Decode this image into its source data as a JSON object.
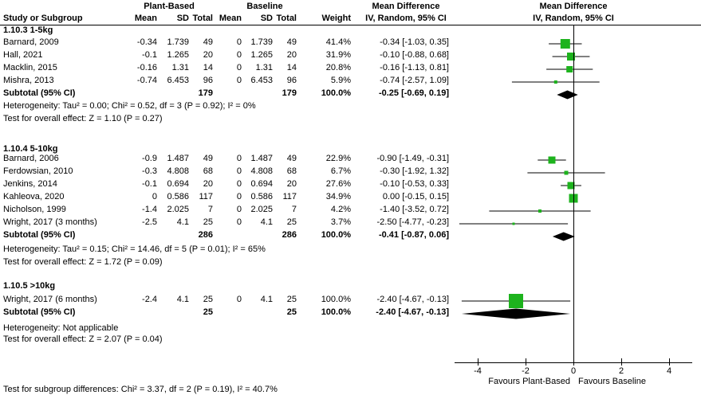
{
  "header": {
    "plant_based": "Plant-Based",
    "baseline": "Baseline",
    "study_or_subgroup": "Study or Subgroup",
    "mean": "Mean",
    "sd": "SD",
    "total": "Total",
    "weight": "Weight",
    "mean_difference": "Mean Difference",
    "iv_random": "IV, Random, 95% CI"
  },
  "footer": "Test for subgroup differences: Chi² = 3.37, df = 2 (P = 0.19), I² = 40.7%",
  "colors": {
    "marker_green": "#1db31d",
    "diamond_black": "#000000",
    "line_black": "#000000"
  },
  "chart_data": {
    "type": "scatter",
    "subtype": "forest-plot",
    "effect_measure": "Mean Difference IV, Random, 95% CI",
    "xlim": [
      -5,
      5
    ],
    "ticks": [
      -4,
      -2,
      0,
      2,
      4
    ],
    "favours_left": "Favours Plant-Based",
    "favours_right": "Favours Baseline",
    "groups": [
      {
        "label": "1.10.3 1-5kg",
        "studies": [
          {
            "study": "Barnard, 2009",
            "mean_pb": -0.34,
            "sd_pb": 1.739,
            "n_pb": 49,
            "mean_bl": 0,
            "sd_bl": 1.739,
            "n_bl": 49,
            "weight": "41.4%",
            "weight_pct": 41.4,
            "md": -0.34,
            "ci_low": -1.03,
            "ci_high": 0.35,
            "ci_text": "-0.34 [-1.03, 0.35]"
          },
          {
            "study": "Hall, 2021",
            "mean_pb": -0.1,
            "sd_pb": 1.265,
            "n_pb": 20,
            "mean_bl": 0,
            "sd_bl": 1.265,
            "n_bl": 20,
            "weight": "31.9%",
            "weight_pct": 31.9,
            "md": -0.1,
            "ci_low": -0.88,
            "ci_high": 0.68,
            "ci_text": "-0.10 [-0.88, 0.68]"
          },
          {
            "study": "Macklin, 2015",
            "mean_pb": -0.16,
            "sd_pb": 1.31,
            "n_pb": 14,
            "mean_bl": 0,
            "sd_bl": 1.31,
            "n_bl": 14,
            "weight": "20.8%",
            "weight_pct": 20.8,
            "md": -0.16,
            "ci_low": -1.13,
            "ci_high": 0.81,
            "ci_text": "-0.16 [-1.13, 0.81]"
          },
          {
            "study": "Mishra, 2013",
            "mean_pb": -0.74,
            "sd_pb": 6.453,
            "n_pb": 96,
            "mean_bl": 0,
            "sd_bl": 6.453,
            "n_bl": 96,
            "weight": "5.9%",
            "weight_pct": 5.9,
            "md": -0.74,
            "ci_low": -2.57,
            "ci_high": 1.09,
            "ci_text": "-0.74 [-2.57, 1.09]"
          }
        ],
        "subtotal": {
          "label": "Subtotal (95% CI)",
          "n_pb": 179,
          "n_bl": 179,
          "weight": "100.0%",
          "md": -0.25,
          "ci_low": -0.69,
          "ci_high": 0.19,
          "ci_text": "-0.25 [-0.69, 0.19]"
        },
        "heterogeneity": "Heterogeneity: Tau² = 0.00; Chi² = 0.52, df = 3 (P = 0.92); I² = 0%",
        "overall_test": "Test for overall effect: Z = 1.10 (P = 0.27)"
      },
      {
        "label": "1.10.4 5-10kg",
        "studies": [
          {
            "study": "Barnard, 2006",
            "mean_pb": -0.9,
            "sd_pb": 1.487,
            "n_pb": 49,
            "mean_bl": 0,
            "sd_bl": 1.487,
            "n_bl": 49,
            "weight": "22.9%",
            "weight_pct": 22.9,
            "md": -0.9,
            "ci_low": -1.49,
            "ci_high": -0.31,
            "ci_text": "-0.90 [-1.49, -0.31]"
          },
          {
            "study": "Ferdowsian, 2010",
            "mean_pb": -0.3,
            "sd_pb": 4.808,
            "n_pb": 68,
            "mean_bl": 0,
            "sd_bl": 4.808,
            "n_bl": 68,
            "weight": "6.7%",
            "weight_pct": 6.7,
            "md": -0.3,
            "ci_low": -1.92,
            "ci_high": 1.32,
            "ci_text": "-0.30 [-1.92, 1.32]"
          },
          {
            "study": "Jenkins, 2014",
            "mean_pb": -0.1,
            "sd_pb": 0.694,
            "n_pb": 20,
            "mean_bl": 0,
            "sd_bl": 0.694,
            "n_bl": 20,
            "weight": "27.6%",
            "weight_pct": 27.6,
            "md": -0.1,
            "ci_low": -0.53,
            "ci_high": 0.33,
            "ci_text": "-0.10 [-0.53, 0.33]"
          },
          {
            "study": "Kahleova, 2020",
            "mean_pb": 0,
            "sd_pb": 0.586,
            "n_pb": 117,
            "mean_bl": 0,
            "sd_bl": 0.586,
            "n_bl": 117,
            "weight": "34.9%",
            "weight_pct": 34.9,
            "md": 0,
            "ci_low": -0.15,
            "ci_high": 0.15,
            "ci_text": "0.00 [-0.15, 0.15]"
          },
          {
            "study": "Nicholson, 1999",
            "mean_pb": -1.4,
            "sd_pb": 2.025,
            "n_pb": 7,
            "mean_bl": 0,
            "sd_bl": 2.025,
            "n_bl": 7,
            "weight": "4.2%",
            "weight_pct": 4.2,
            "md": -1.4,
            "ci_low": -3.52,
            "ci_high": 0.72,
            "ci_text": "-1.40 [-3.52, 0.72]"
          },
          {
            "study": "Wright, 2017 (3 months)",
            "mean_pb": -2.5,
            "sd_pb": 4.1,
            "n_pb": 25,
            "mean_bl": 0,
            "sd_bl": 4.1,
            "n_bl": 25,
            "weight": "3.7%",
            "weight_pct": 3.7,
            "md": -2.5,
            "ci_low": -4.77,
            "ci_high": -0.23,
            "ci_text": "-2.50 [-4.77, -0.23]"
          }
        ],
        "subtotal": {
          "label": "Subtotal (95% CI)",
          "n_pb": 286,
          "n_bl": 286,
          "weight": "100.0%",
          "md": -0.41,
          "ci_low": -0.87,
          "ci_high": 0.06,
          "ci_text": "-0.41 [-0.87, 0.06]"
        },
        "heterogeneity": "Heterogeneity: Tau² = 0.15; Chi² = 14.46, df = 5 (P = 0.01); I² = 65%",
        "overall_test": "Test for overall effect: Z = 1.72 (P = 0.09)"
      },
      {
        "label": "1.10.5 >10kg",
        "studies": [
          {
            "study": "Wright, 2017 (6 months)",
            "mean_pb": -2.4,
            "sd_pb": 4.1,
            "n_pb": 25,
            "mean_bl": 0,
            "sd_bl": 4.1,
            "n_bl": 25,
            "weight": "100.0%",
            "weight_pct": 100.0,
            "md": -2.4,
            "ci_low": -4.67,
            "ci_high": -0.13,
            "ci_text": "-2.40 [-4.67, -0.13]"
          }
        ],
        "subtotal": {
          "label": "Subtotal (95% CI)",
          "n_pb": 25,
          "n_bl": 25,
          "weight": "100.0%",
          "md": -2.4,
          "ci_low": -4.67,
          "ci_high": -0.13,
          "ci_text": "-2.40 [-4.67, -0.13]"
        },
        "heterogeneity": "Heterogeneity: Not applicable",
        "overall_test": "Test for overall effect: Z = 2.07 (P = 0.04)"
      }
    ]
  }
}
